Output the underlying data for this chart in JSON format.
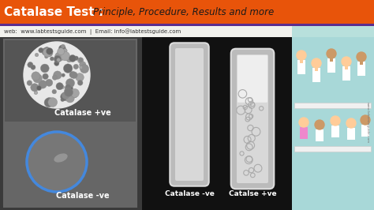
{
  "title_bold": "Catalase Test : ",
  "title_regular": "Principle, Procedure, Results and more",
  "title_bg_color": "#E8540A",
  "title_bold_color": "#FFFFFF",
  "title_regular_color": "#1A1A1A",
  "subtitle_text": "web:  www.labtestsguide.com  |  Email: info@labtestsguide.com",
  "subtitle_bg_color": "#F2F2EE",
  "subtitle_text_color": "#333333",
  "main_bg_color": "#E8E8E4",
  "right_panel_bg": "#A8D8D8",
  "orange_bar_color": "#E8540A",
  "purple_bar_color": "#5B2D8E",
  "left_photo_bg": "#444444",
  "label_positive": "Catalase +ve",
  "label_negative": "Catalase -ve",
  "label_tube_neg": "Catalase -ve",
  "label_tube_pos": "Catalse +ve",
  "figsize": [
    4.74,
    2.66
  ],
  "dpi": 100
}
